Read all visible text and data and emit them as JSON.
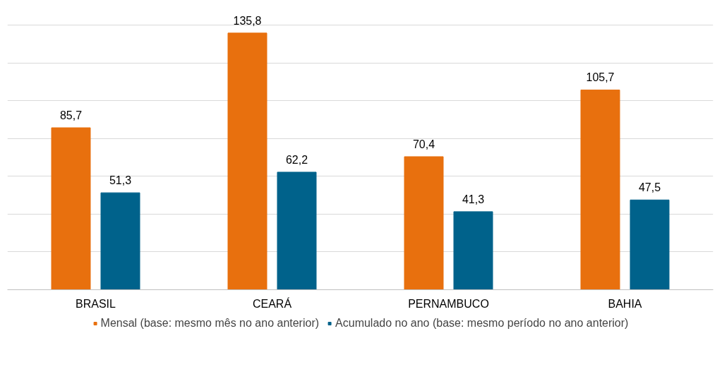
{
  "chart_data": {
    "type": "bar",
    "categories": [
      "BRASIL",
      "CEARÁ",
      "PERNAMBUCO",
      "BAHIA"
    ],
    "series": [
      {
        "name": "Mensal (base: mesmo mês no ano anterior)",
        "color": "#e8700e",
        "values": [
          85.7,
          135.8,
          70.4,
          105.7
        ],
        "value_labels": [
          "85,7",
          "135,8",
          "70,4",
          "105,7"
        ]
      },
      {
        "name": "Acumulado no ano (base: mesmo período no ano anterior)",
        "color": "#00628b",
        "values": [
          51.3,
          62.2,
          41.3,
          47.5
        ],
        "value_labels": [
          "51,3",
          "62,2",
          "41,3",
          "47,5"
        ]
      }
    ],
    "tick_labels": "x",
    "grid": "y",
    "legend": "bottom"
  }
}
